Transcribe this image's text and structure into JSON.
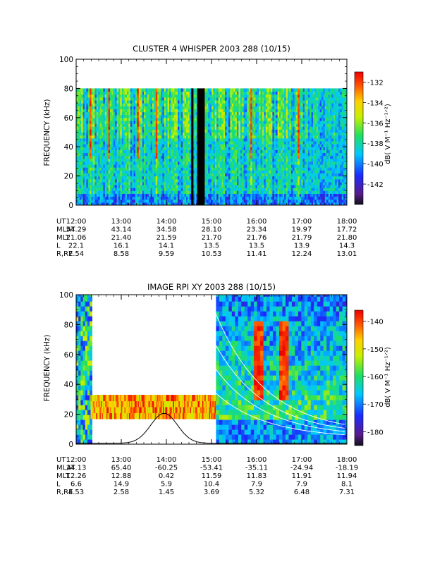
{
  "chart_data": [
    {
      "type": "heatmap",
      "title": "CLUSTER 4 WHISPER 2003 288 (10/15)",
      "ylabel": "FREQUENCY (kHz)",
      "ylim": [
        0,
        100
      ],
      "y_ticks": [
        "0",
        "20",
        "40",
        "60",
        "80",
        "100"
      ],
      "x_ticks": [
        "12:00",
        "13:00",
        "14:00",
        "15:00",
        "16:00",
        "17:00",
        "18:00"
      ],
      "xlim": [
        "12:00",
        "18:00"
      ],
      "data_max_frequency_khz": 80,
      "data_gaps_ut": [
        [
          "14:33",
          "14:36"
        ],
        [
          "14:41",
          "14:51"
        ]
      ],
      "colorbar": {
        "label": "dB( V M⁻¹ Hz⁻¹ᐟ²)",
        "ticks": [
          "-132",
          "-134",
          "-136",
          "-138",
          "-140",
          "-142"
        ],
        "range": [
          -144,
          -131
        ]
      },
      "orbit_table": {
        "rows": [
          {
            "label": "UT",
            "values": [
              "12:00",
              "13:00",
              "14:00",
              "15:00",
              "16:00",
              "17:00",
              "18:00"
            ]
          },
          {
            "label": "MLAT",
            "values": [
              "54.29",
              "43.14",
              "34.58",
              "28.10",
              "23.34",
              "19.97",
              "17.72"
            ]
          },
          {
            "label": "MLT",
            "values": [
              "21.06",
              "21.40",
              "21.59",
              "21.70",
              "21.76",
              "21.79",
              "21.80"
            ]
          },
          {
            "label": "L",
            "values": [
              "22.1",
              "16.1",
              "14.1",
              "13.5",
              "13.5",
              "13.9",
              "14.3"
            ]
          },
          {
            "label": "R,RE",
            "values": [
              "7.54",
              "8.58",
              "9.59",
              "10.53",
              "11.41",
              "12.24",
              "13.01"
            ]
          }
        ]
      }
    },
    {
      "type": "heatmap",
      "title": "IMAGE RPI XY 2003 288 (10/15)",
      "ylabel": "FREQUENCY (kHz)",
      "ylim": [
        0,
        100
      ],
      "y_ticks": [
        "0",
        "20",
        "40",
        "60",
        "80",
        "100"
      ],
      "x_ticks": [
        "12:00",
        "13:00",
        "14:00",
        "15:00",
        "16:00",
        "17:00",
        "18:00"
      ],
      "xlim": [
        "12:00",
        "18:00"
      ],
      "band_frequency_khz": [
        17,
        33
      ],
      "colorbar": {
        "label": "dB( V M⁻¹ Hz⁻¹ᐟ²)",
        "ticks": [
          "-140",
          "-150",
          "-160",
          "-170",
          "-180"
        ],
        "range": [
          -185,
          -136
        ]
      },
      "orbit_table": {
        "rows": [
          {
            "label": "UT",
            "values": [
              "12:00",
              "13:00",
              "14:00",
              "15:00",
              "16:00",
              "17:00",
              "18:00"
            ]
          },
          {
            "label": "MLAT",
            "values": [
              "34.13",
              "65.40",
              "-60.25",
              "-53.41",
              "-35.11",
              "-24.94",
              "-18.19"
            ]
          },
          {
            "label": "MLT",
            "values": [
              "12.26",
              "12.88",
              "0.42",
              "11.59",
              "11.83",
              "11.91",
              "11.94"
            ]
          },
          {
            "label": "L",
            "values": [
              "6.6",
              "14.9",
              "5.9",
              "10.4",
              "7.9",
              "7.9",
              "8.1"
            ]
          },
          {
            "label": "R,RE",
            "values": [
              "4.53",
              "2.58",
              "1.45",
              "3.69",
              "5.32",
              "6.48",
              "7.31"
            ]
          }
        ]
      }
    }
  ]
}
